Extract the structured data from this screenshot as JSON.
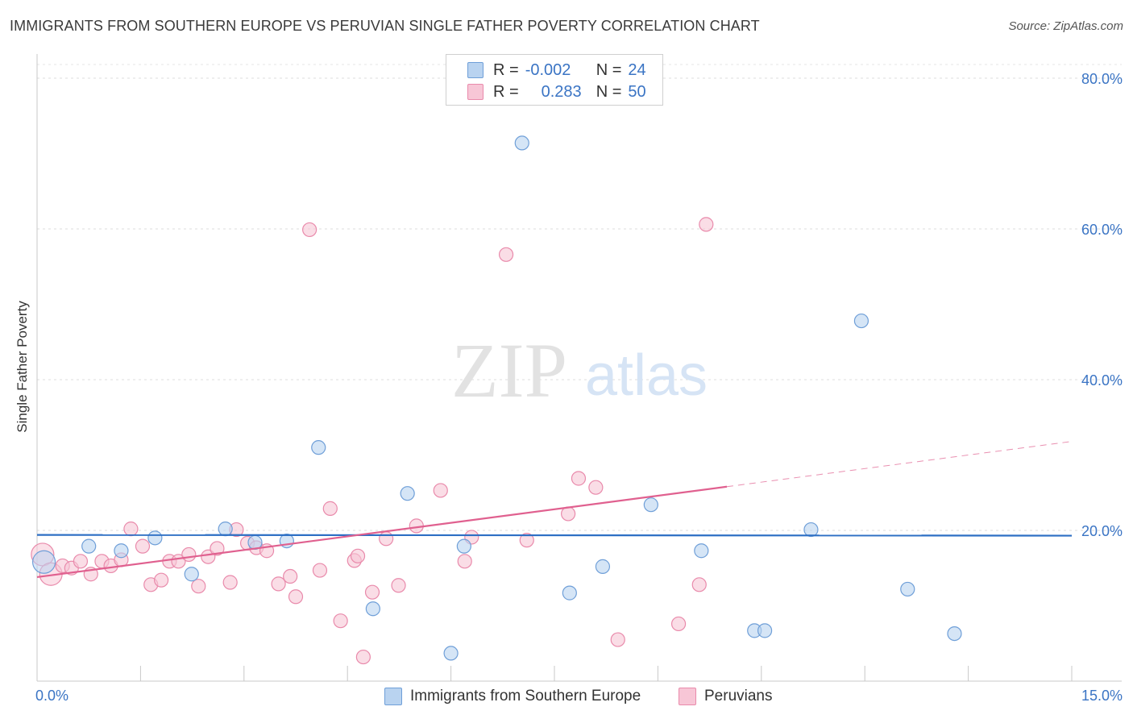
{
  "title": "IMMIGRANTS FROM SOUTHERN EUROPE VS PERUVIAN SINGLE FATHER POVERTY CORRELATION CHART",
  "source": "Source: ZipAtlas.com",
  "watermark": {
    "zip": "ZIP",
    "atlas": "atlas"
  },
  "legend": {
    "rows": [
      {
        "r_label": "R =",
        "r_value": "-0.002",
        "n_label": "N =",
        "n_value": "24"
      },
      {
        "r_label": "R =",
        "r_value": "0.283",
        "n_label": "N =",
        "n_value": "50"
      }
    ]
  },
  "bottom_legend": [
    "Immigrants from Southern Europe",
    "Peruvians"
  ],
  "colors": {
    "blue_fill": "#b9d3f0",
    "blue_stroke": "#6f9fd8",
    "blue_line": "#2d6fc4",
    "pink_fill": "#f7c6d6",
    "pink_stroke": "#e98aab",
    "pink_line": "#e0608f",
    "tick_text": "#3a74c4"
  },
  "chart_data": {
    "type": "scatter",
    "title": "IMMIGRANTS FROM SOUTHERN EUROPE VS PERUVIAN SINGLE FATHER POVERTY CORRELATION CHART",
    "xlabel": "",
    "ylabel": "Single Father Poverty",
    "xlim": [
      0,
      15
    ],
    "ylim": [
      0,
      80
    ],
    "x_tick_labels": [
      "0.0%",
      "15.0%"
    ],
    "y_ticks": [
      20,
      40,
      60,
      80
    ],
    "y_tick_labels": [
      "20.0%",
      "40.0%",
      "60.0%",
      "80.0%"
    ],
    "grid": true,
    "series": [
      {
        "name": "Immigrants from Southern Europe",
        "color": "#6f9fd8",
        "r": -0.002,
        "n": 24,
        "trend": {
          "x0": 0,
          "y0": 19.4,
          "x1": 15,
          "y1": 19.3,
          "dashed_from": null
        },
        "points": [
          {
            "x": 0.1,
            "y": 15.8,
            "big": true
          },
          {
            "x": 0.75,
            "y": 17.9
          },
          {
            "x": 1.22,
            "y": 17.3
          },
          {
            "x": 1.71,
            "y": 19.0
          },
          {
            "x": 2.24,
            "y": 14.2
          },
          {
            "x": 2.73,
            "y": 20.2
          },
          {
            "x": 3.16,
            "y": 18.4
          },
          {
            "x": 3.62,
            "y": 18.6
          },
          {
            "x": 4.08,
            "y": 31.0
          },
          {
            "x": 4.87,
            "y": 9.6
          },
          {
            "x": 5.37,
            "y": 24.9
          },
          {
            "x": 6.0,
            "y": 3.7
          },
          {
            "x": 6.19,
            "y": 17.9
          },
          {
            "x": 7.03,
            "y": 71.4
          },
          {
            "x": 7.72,
            "y": 11.7
          },
          {
            "x": 8.2,
            "y": 15.2
          },
          {
            "x": 8.9,
            "y": 23.4
          },
          {
            "x": 9.63,
            "y": 17.3
          },
          {
            "x": 10.4,
            "y": 6.7
          },
          {
            "x": 10.55,
            "y": 6.7
          },
          {
            "x": 11.22,
            "y": 20.1
          },
          {
            "x": 11.95,
            "y": 47.8
          },
          {
            "x": 12.62,
            "y": 12.2
          },
          {
            "x": 13.3,
            "y": 6.3
          }
        ]
      },
      {
        "name": "Peruvians",
        "color": "#e98aab",
        "r": 0.283,
        "n": 50,
        "trend": {
          "x0": 0,
          "y0": 13.8,
          "x1": 15,
          "y1": 31.8,
          "dashed_from": 10.0
        },
        "points": [
          {
            "x": 0.08,
            "y": 16.8,
            "big": true
          },
          {
            "x": 0.2,
            "y": 14.2,
            "big": true
          },
          {
            "x": 0.37,
            "y": 15.3
          },
          {
            "x": 0.5,
            "y": 15.0
          },
          {
            "x": 0.63,
            "y": 15.9
          },
          {
            "x": 0.78,
            "y": 14.2
          },
          {
            "x": 0.94,
            "y": 15.9
          },
          {
            "x": 1.07,
            "y": 15.3
          },
          {
            "x": 1.22,
            "y": 16.1
          },
          {
            "x": 1.36,
            "y": 20.2
          },
          {
            "x": 1.53,
            "y": 17.9
          },
          {
            "x": 1.65,
            "y": 12.8
          },
          {
            "x": 1.8,
            "y": 13.4
          },
          {
            "x": 1.92,
            "y": 15.9
          },
          {
            "x": 2.05,
            "y": 15.9
          },
          {
            "x": 2.2,
            "y": 16.8
          },
          {
            "x": 2.34,
            "y": 12.6
          },
          {
            "x": 2.48,
            "y": 16.5
          },
          {
            "x": 2.61,
            "y": 17.6
          },
          {
            "x": 2.8,
            "y": 13.1
          },
          {
            "x": 2.89,
            "y": 20.1
          },
          {
            "x": 3.05,
            "y": 18.3
          },
          {
            "x": 3.18,
            "y": 17.7
          },
          {
            "x": 3.33,
            "y": 17.3
          },
          {
            "x": 3.5,
            "y": 12.9
          },
          {
            "x": 3.67,
            "y": 13.9
          },
          {
            "x": 3.75,
            "y": 11.2
          },
          {
            "x": 3.95,
            "y": 59.9
          },
          {
            "x": 4.1,
            "y": 14.7
          },
          {
            "x": 4.25,
            "y": 22.9
          },
          {
            "x": 4.4,
            "y": 8.0
          },
          {
            "x": 4.6,
            "y": 16.0
          },
          {
            "x": 4.65,
            "y": 16.6
          },
          {
            "x": 4.73,
            "y": 3.2
          },
          {
            "x": 4.86,
            "y": 11.8
          },
          {
            "x": 5.06,
            "y": 18.9
          },
          {
            "x": 5.24,
            "y": 12.7
          },
          {
            "x": 5.5,
            "y": 20.6
          },
          {
            "x": 5.85,
            "y": 25.3
          },
          {
            "x": 6.2,
            "y": 15.9
          },
          {
            "x": 6.3,
            "y": 19.1
          },
          {
            "x": 6.8,
            "y": 56.6
          },
          {
            "x": 7.1,
            "y": 18.7
          },
          {
            "x": 7.7,
            "y": 22.2
          },
          {
            "x": 7.85,
            "y": 26.9
          },
          {
            "x": 8.1,
            "y": 25.7
          },
          {
            "x": 8.42,
            "y": 5.5
          },
          {
            "x": 9.3,
            "y": 7.6
          },
          {
            "x": 9.6,
            "y": 12.8
          },
          {
            "x": 9.7,
            "y": 60.6
          }
        ]
      }
    ]
  }
}
